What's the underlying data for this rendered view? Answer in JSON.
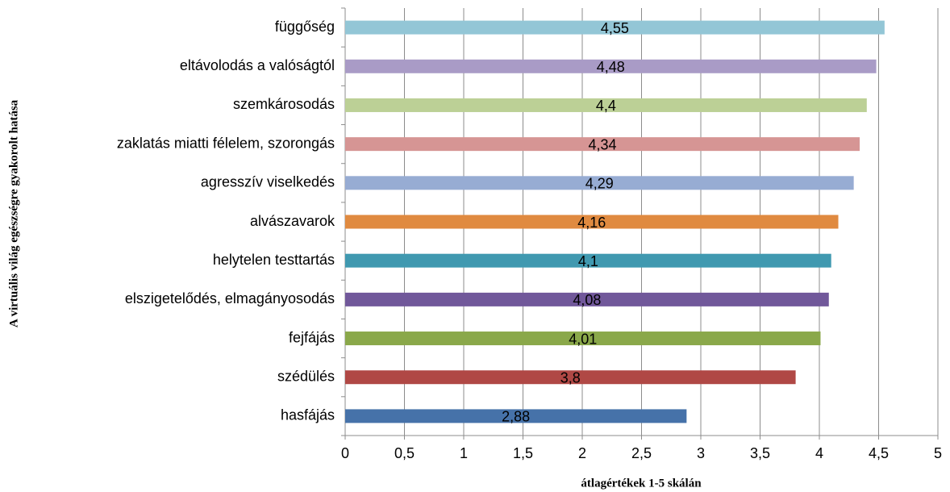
{
  "chart_data": {
    "type": "bar",
    "orientation": "horizontal",
    "x_label": "átlagértékek 1-5 skálán",
    "y_label": "A virtuális világ egészségre gyakorolt hatása",
    "categories": [
      "függőség",
      "eltávolodás a valóságtól",
      "szemkárosodás",
      "zaklatás miatti félelem, szorongás",
      "agresszív viselkedés",
      "alvászavarok",
      "helytelen testtartás",
      "elszigetelődés, elmagányosodás",
      "fejfájás",
      "szédülés",
      "hasfájás"
    ],
    "values": [
      4.55,
      4.48,
      4.4,
      4.34,
      4.29,
      4.16,
      4.1,
      4.08,
      4.01,
      3.8,
      2.88
    ],
    "value_labels": [
      "4,55",
      "4,48",
      "4,4",
      "4,34",
      "4,29",
      "4,16",
      "4,1",
      "4,08",
      "4,01",
      "3,8",
      "2,88"
    ],
    "colors": [
      "#93c6d6",
      "#a99bc6",
      "#bcd096",
      "#d69594",
      "#97acd3",
      "#e08a40",
      "#4099b0",
      "#71589a",
      "#8aa84a",
      "#b04845",
      "#4672a9"
    ],
    "xlim": [
      0,
      5
    ],
    "xticks": [
      0,
      {
        "value": 0.5,
        "label": "0,5"
      },
      1,
      {
        "value": 1.5,
        "label": "1,5"
      },
      2,
      {
        "value": 2.5,
        "label": "2,5"
      },
      3,
      {
        "value": 3.5,
        "label": "3,5"
      },
      4,
      {
        "value": 4.5,
        "label": "4,5"
      },
      5
    ],
    "grid": true
  }
}
